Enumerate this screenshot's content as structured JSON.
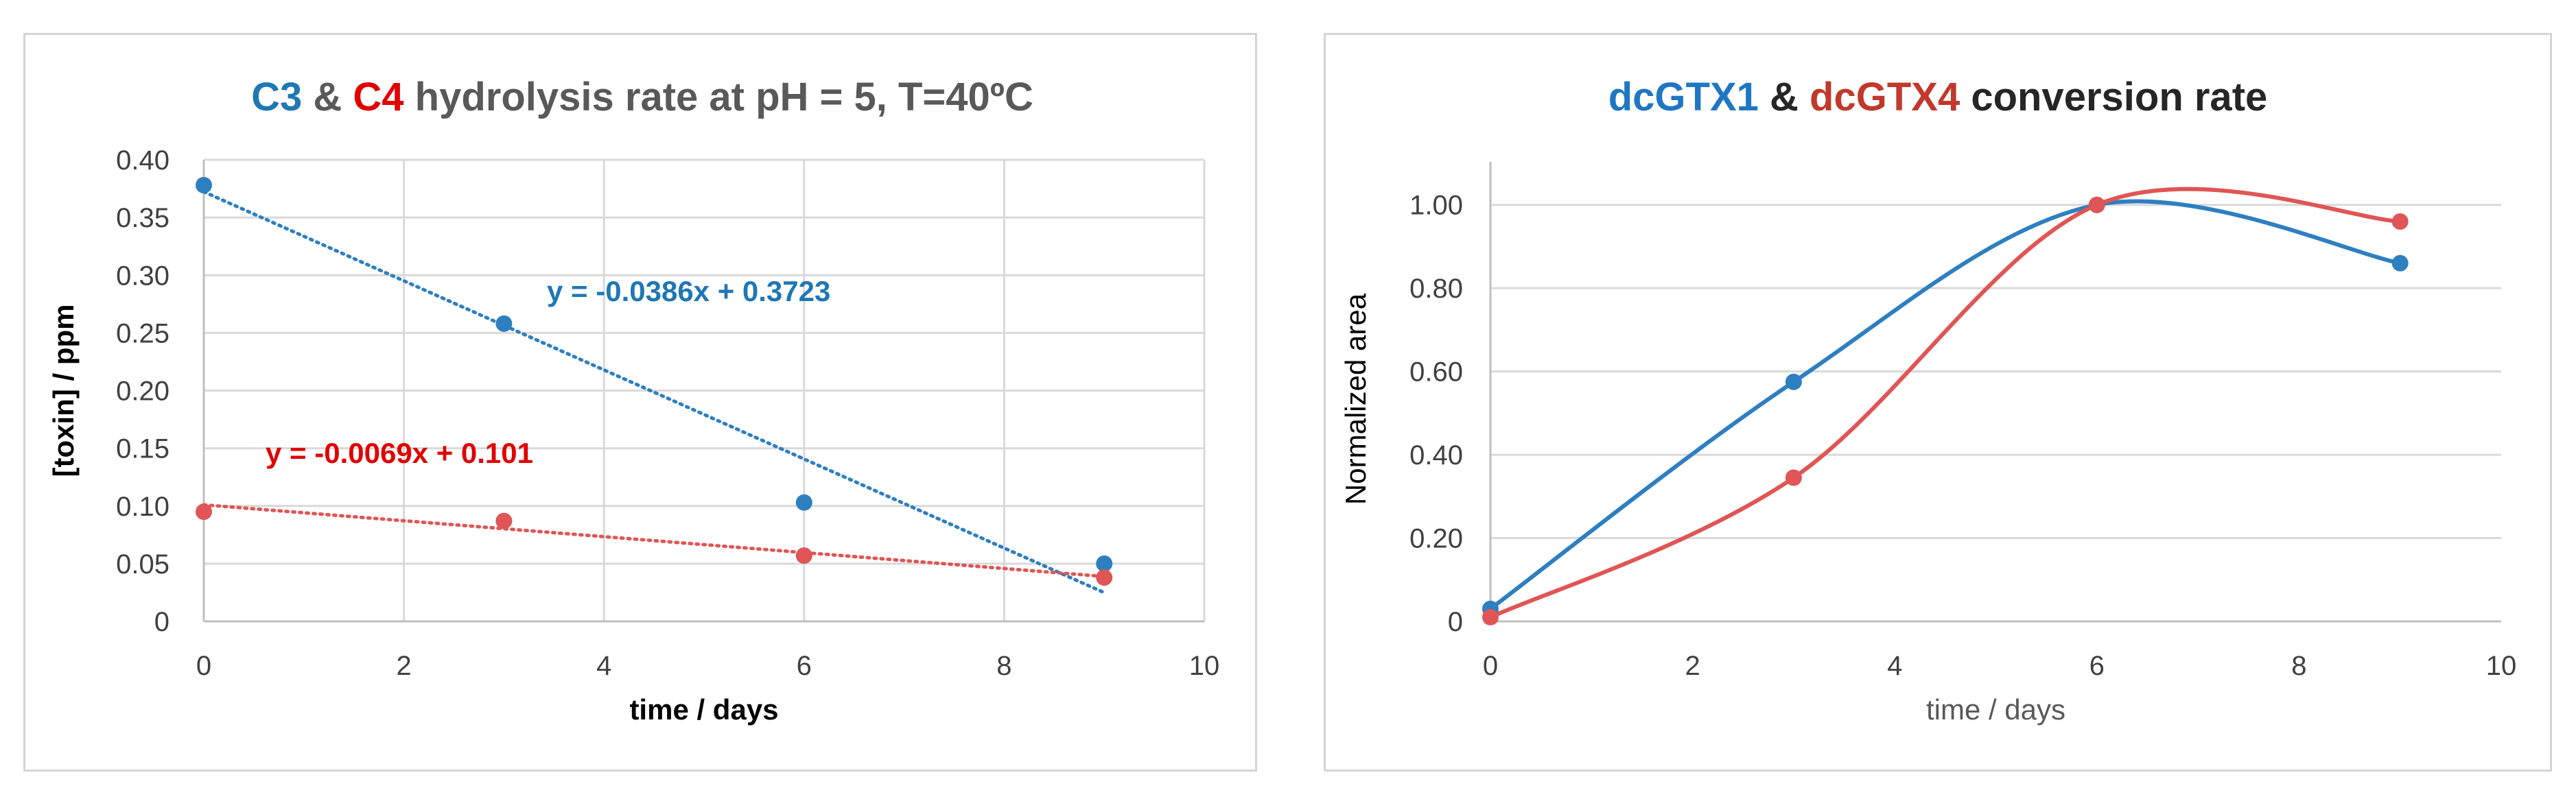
{
  "chart_data": [
    {
      "type": "scatter",
      "title_parts": [
        {
          "text": "C3",
          "color": "#1f77b4"
        },
        {
          "text": " & ",
          "color": "#595959"
        },
        {
          "text": "C4",
          "color": "#e00000"
        },
        {
          "text": " hydrolysis rate at pH = 5, T=40ºC",
          "color": "#595959"
        }
      ],
      "xlabel": "time / days",
      "ylabel": "[toxin] / ppm",
      "xlim": [
        0,
        10
      ],
      "ylim": [
        0,
        0.4
      ],
      "x_ticks": [
        "0",
        "2",
        "4",
        "6",
        "8",
        "10"
      ],
      "y_ticks": [
        "0",
        "0.05",
        "0.10",
        "0.15",
        "0.20",
        "0.25",
        "0.30",
        "0.35",
        "0.40"
      ],
      "grid": true,
      "series": [
        {
          "name": "C3",
          "color": "#2e7fc0",
          "x": [
            0,
            3,
            6,
            9
          ],
          "y": [
            0.378,
            0.258,
            0.103,
            0.05
          ],
          "trendline": {
            "slope": -0.0386,
            "intercept": 0.3723,
            "x_range": [
              0,
              9
            ],
            "equation": "y = -0.0386x + 0.3723",
            "label_color": "#1f77b4"
          }
        },
        {
          "name": "C4",
          "color": "#e05555",
          "x": [
            0,
            3,
            6,
            9
          ],
          "y": [
            0.095,
            0.087,
            0.057,
            0.038
          ],
          "trendline": {
            "slope": -0.0069,
            "intercept": 0.101,
            "x_range": [
              0,
              9
            ],
            "equation": "y = -0.0069x + 0.101",
            "label_color": "#e00000"
          }
        }
      ]
    },
    {
      "type": "line",
      "title_parts": [
        {
          "text": "dcGTX1",
          "color": "#1f77c4"
        },
        {
          "text": " & ",
          "color": "#262626"
        },
        {
          "text": "dcGTX4",
          "color": "#c0392b"
        },
        {
          "text": " conversion rate",
          "color": "#262626"
        }
      ],
      "xlabel": "time / days",
      "ylabel": "Normalized area",
      "xlim": [
        0,
        10
      ],
      "ylim": [
        0,
        1.1
      ],
      "x_ticks": [
        "0",
        "2",
        "4",
        "6",
        "8",
        "10"
      ],
      "y_ticks": [
        "0",
        "0.20",
        "0.40",
        "0.60",
        "0.80",
        "1.00"
      ],
      "y_tick_values": [
        0,
        0.2,
        0.4,
        0.6,
        0.8,
        1.0
      ],
      "grid": true,
      "smooth": true,
      "series": [
        {
          "name": "dcGTX1",
          "color": "#2e7fc0",
          "x": [
            0,
            3,
            6,
            9
          ],
          "y": [
            0.03,
            0.575,
            1.0,
            0.86
          ]
        },
        {
          "name": "dcGTX4",
          "color": "#e05555",
          "x": [
            0,
            3,
            6,
            9
          ],
          "y": [
            0.01,
            0.345,
            1.0,
            0.96
          ]
        }
      ]
    }
  ]
}
